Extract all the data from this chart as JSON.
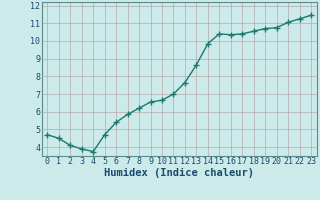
{
  "x": [
    0,
    1,
    2,
    3,
    4,
    5,
    6,
    7,
    8,
    9,
    10,
    11,
    12,
    13,
    14,
    15,
    16,
    17,
    18,
    19,
    20,
    21,
    22,
    23
  ],
  "y": [
    4.7,
    4.5,
    4.1,
    3.9,
    3.75,
    4.7,
    5.4,
    5.85,
    6.2,
    6.55,
    6.65,
    7.0,
    7.65,
    8.65,
    9.85,
    10.4,
    10.35,
    10.4,
    10.55,
    10.7,
    10.75,
    11.05,
    11.25,
    11.45
  ],
  "xlim": [
    -0.5,
    23.5
  ],
  "ylim": [
    3.5,
    12.2
  ],
  "yticks": [
    4,
    5,
    6,
    7,
    8,
    9,
    10,
    11,
    12
  ],
  "xticks": [
    0,
    1,
    2,
    3,
    4,
    5,
    6,
    7,
    8,
    9,
    10,
    11,
    12,
    13,
    14,
    15,
    16,
    17,
    18,
    19,
    20,
    21,
    22,
    23
  ],
  "xlabel": "Humidex (Indice chaleur)",
  "line_color": "#1a7a6e",
  "marker": "+",
  "bg_color": "#cceaea",
  "grid_color": "#b8a8a8",
  "text_color": "#1a4a6e",
  "xlabel_fontsize": 7.5,
  "tick_fontsize": 6,
  "linewidth": 1.0,
  "markersize": 4,
  "markeredgewidth": 1.0
}
